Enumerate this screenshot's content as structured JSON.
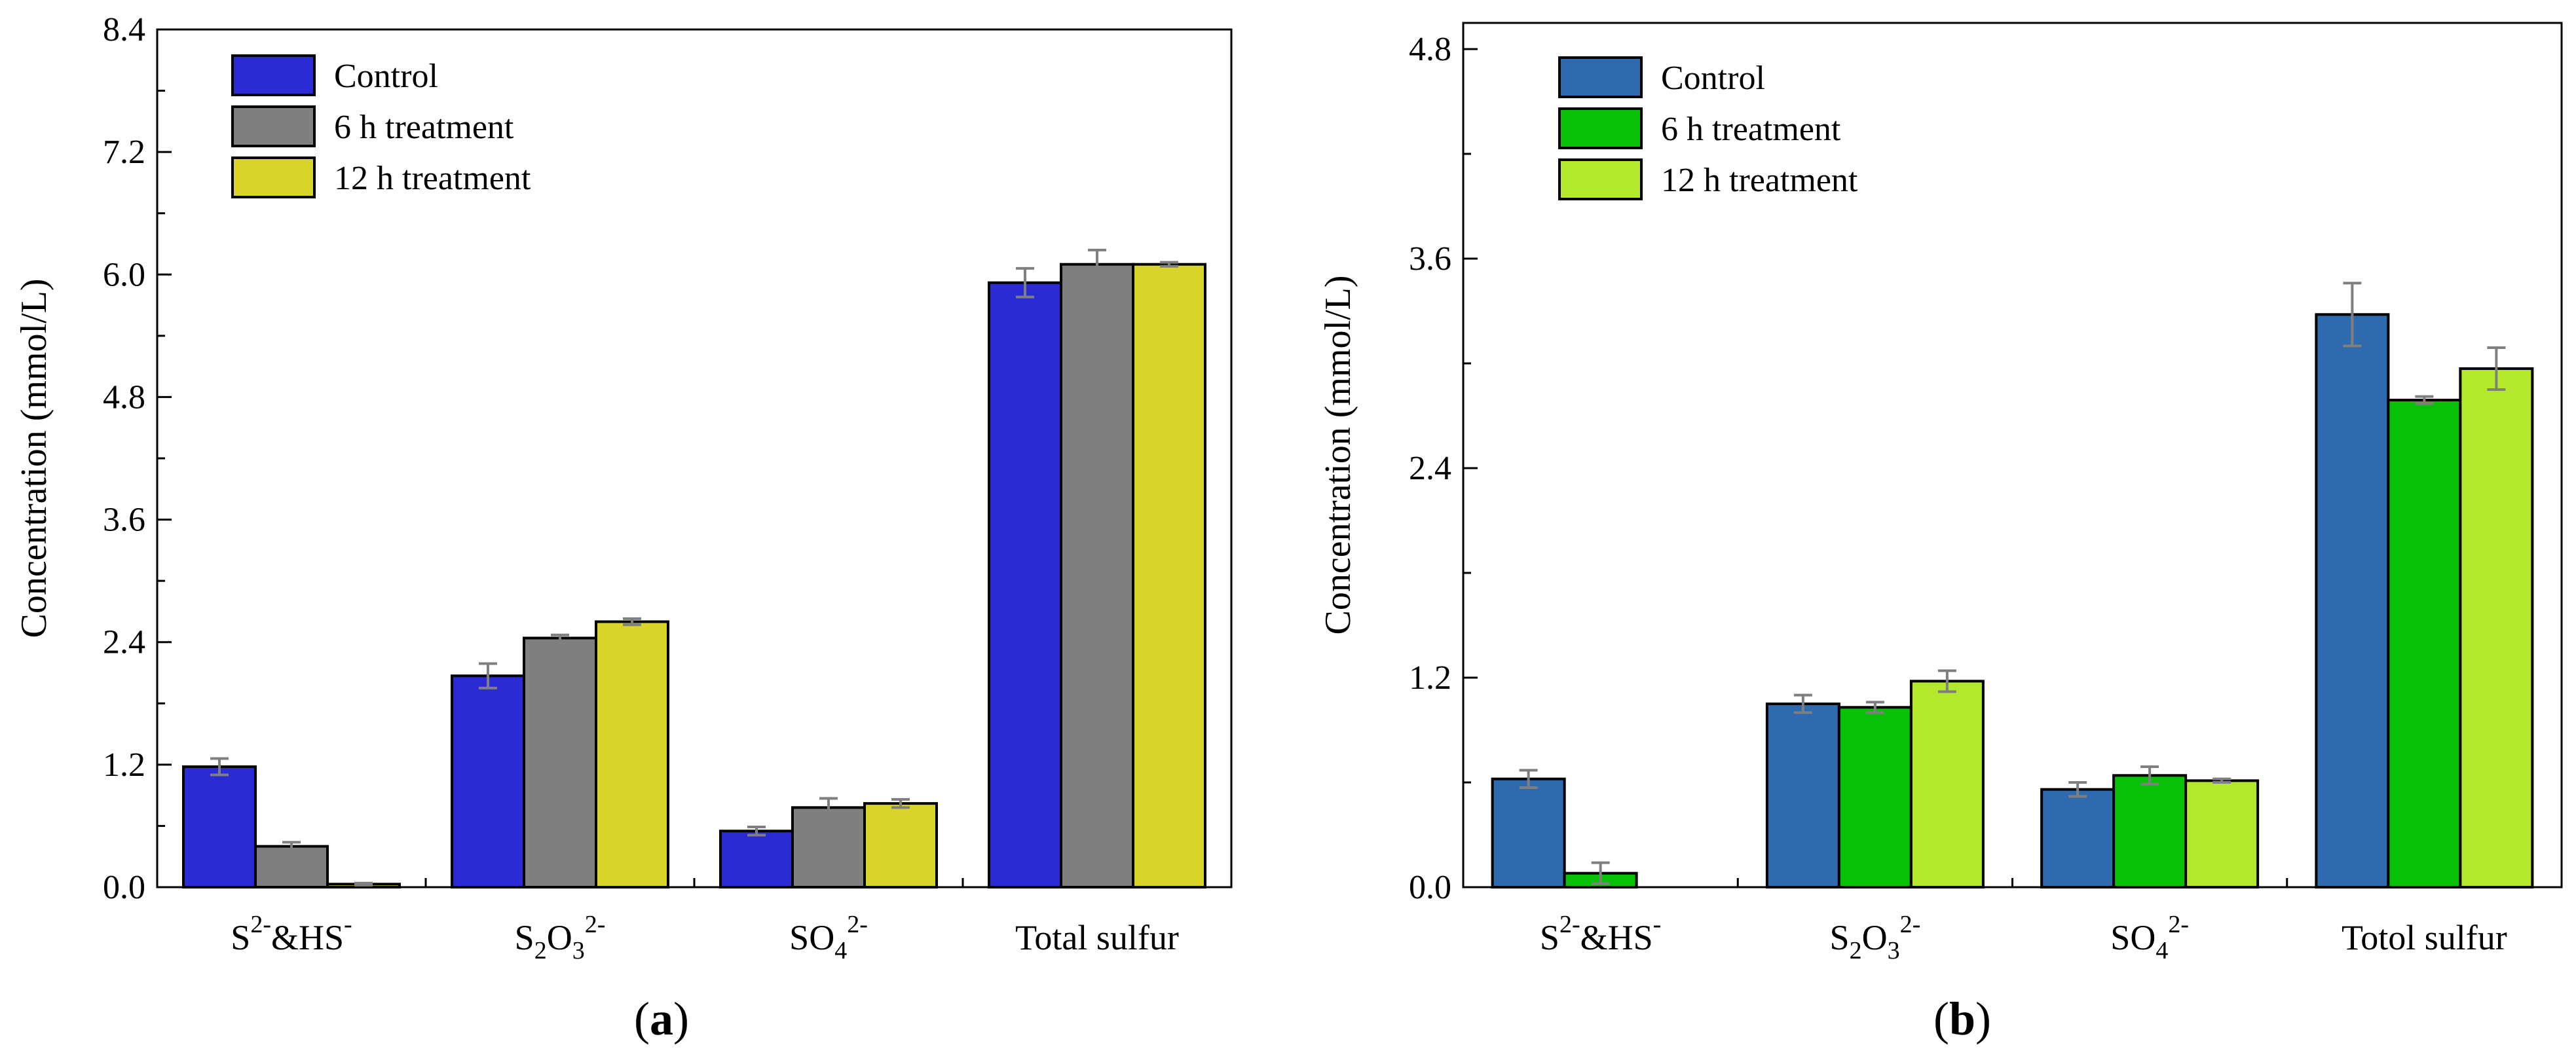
{
  "chart_data": [
    {
      "type": "bar",
      "id": "a",
      "panel_label": "a",
      "ylabel": "Concentration (mmol/L)",
      "xlabel": "",
      "ylim": [
        0,
        8.4
      ],
      "yticks": [
        "0.0",
        "1.2",
        "2.4",
        "3.6",
        "4.8",
        "6.0",
        "7.2",
        "8.4"
      ],
      "categories": [
        {
          "base": "S",
          "sup1": "2-",
          "mid": "&HS",
          "sup2": "-"
        },
        {
          "base": "S",
          "sub1": "2",
          "mid": "O",
          "sub2": "3",
          "sup2": "2-"
        },
        {
          "base": "SO",
          "sub2": "4",
          "sup2": "2-"
        },
        {
          "base": "Total sulfur"
        }
      ],
      "series": [
        {
          "name": "Control",
          "color": "#2b2bd4",
          "values": [
            1.18,
            2.07,
            0.55,
            5.92
          ],
          "errors": [
            0.08,
            0.12,
            0.04,
            0.14
          ]
        },
        {
          "name": "6 h treatment",
          "color": "#7f7f7f",
          "values": [
            0.4,
            2.44,
            0.78,
            6.1
          ],
          "errors": [
            0.04,
            0.03,
            0.09,
            0.14
          ]
        },
        {
          "name": "12 h treatment",
          "color": "#d8d42a",
          "values": [
            0.03,
            2.6,
            0.82,
            6.1
          ],
          "errors": [
            0.01,
            0.03,
            0.04,
            0.02
          ]
        }
      ]
    },
    {
      "type": "bar",
      "id": "b",
      "panel_label": "b",
      "ylabel": "Concentration (mmol/L)",
      "xlabel": "",
      "ylim": [
        0,
        4.95
      ],
      "yticks": [
        "0.0",
        "1.2",
        "2.4",
        "3.6",
        "4.8"
      ],
      "categories": [
        {
          "base": "S",
          "sup1": "2-",
          "mid": "&HS",
          "sup2": "-"
        },
        {
          "base": "S",
          "sub1": "2",
          "mid": "O",
          "sub2": "3",
          "sup2": "2-"
        },
        {
          "base": "SO",
          "sub2": "4",
          "sup2": "2-"
        },
        {
          "base": "Totol sulfur"
        }
      ],
      "series": [
        {
          "name": "Control",
          "color": "#2e6aad",
          "values": [
            0.62,
            1.05,
            0.56,
            3.28
          ],
          "errors": [
            0.05,
            0.05,
            0.04,
            0.18
          ]
        },
        {
          "name": "6 h treatment",
          "color": "#09c009",
          "values": [
            0.08,
            1.03,
            0.64,
            2.79
          ],
          "errors": [
            0.06,
            0.03,
            0.05,
            0.02
          ]
        },
        {
          "name": "12 h treatment",
          "color": "#b3e82c",
          "values": [
            0.0,
            1.18,
            0.61,
            2.97
          ],
          "errors": [
            0.0,
            0.06,
            0.01,
            0.12
          ]
        }
      ]
    }
  ]
}
